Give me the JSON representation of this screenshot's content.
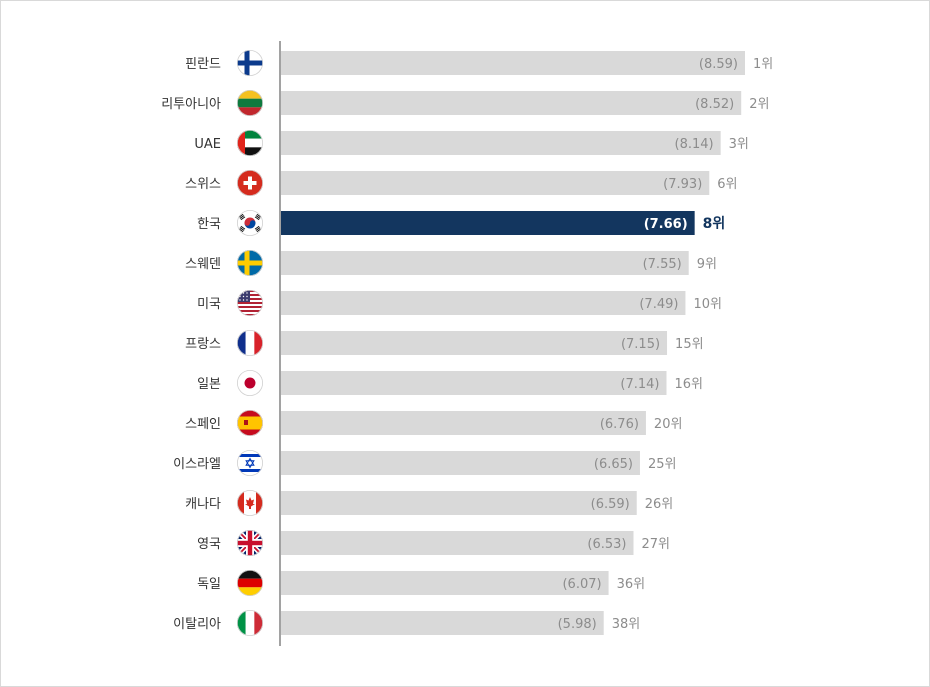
{
  "chart_data": {
    "type": "bar",
    "orientation": "horizontal",
    "highlight_color": "#13365f",
    "bar_color": "#d9d9d9",
    "label_color": "#8c8c8c",
    "rows": [
      {
        "country": "핀란드",
        "value": 8.59,
        "value_label": "(8.59)",
        "rank_label": "1위",
        "flag": "finland-flag"
      },
      {
        "country": "리투아니아",
        "value": 8.52,
        "value_label": "(8.52)",
        "rank_label": "2위",
        "flag": "lithuania-flag"
      },
      {
        "country": "UAE",
        "value": 8.14,
        "value_label": "(8.14)",
        "rank_label": "3위",
        "flag": "uae-flag"
      },
      {
        "country": "스위스",
        "value": 7.93,
        "value_label": "(7.93)",
        "rank_label": "6위",
        "flag": "switzerland-flag"
      },
      {
        "country": "한국",
        "value": 7.66,
        "value_label": "(7.66)",
        "rank_label": "8위",
        "flag": "korea-flag",
        "highlight": true
      },
      {
        "country": "스웨덴",
        "value": 7.55,
        "value_label": "(7.55)",
        "rank_label": "9위",
        "flag": "sweden-flag"
      },
      {
        "country": "미국",
        "value": 7.49,
        "value_label": "(7.49)",
        "rank_label": "10위",
        "flag": "usa-flag"
      },
      {
        "country": "프랑스",
        "value": 7.15,
        "value_label": "(7.15)",
        "rank_label": "15위",
        "flag": "france-flag"
      },
      {
        "country": "일본",
        "value": 7.14,
        "value_label": "(7.14)",
        "rank_label": "16위",
        "flag": "japan-flag"
      },
      {
        "country": "스페인",
        "value": 6.76,
        "value_label": "(6.76)",
        "rank_label": "20위",
        "flag": "spain-flag"
      },
      {
        "country": "이스라엘",
        "value": 6.65,
        "value_label": "(6.65)",
        "rank_label": "25위",
        "flag": "israel-flag"
      },
      {
        "country": "캐나다",
        "value": 6.59,
        "value_label": "(6.59)",
        "rank_label": "26위",
        "flag": "canada-flag"
      },
      {
        "country": "영국",
        "value": 6.53,
        "value_label": "(6.53)",
        "rank_label": "27위",
        "flag": "uk-flag"
      },
      {
        "country": "독일",
        "value": 6.07,
        "value_label": "(6.07)",
        "rank_label": "36위",
        "flag": "germany-flag"
      },
      {
        "country": "이탈리아",
        "value": 5.98,
        "value_label": "(5.98)",
        "rank_label": "38위",
        "flag": "italy-flag"
      }
    ]
  }
}
